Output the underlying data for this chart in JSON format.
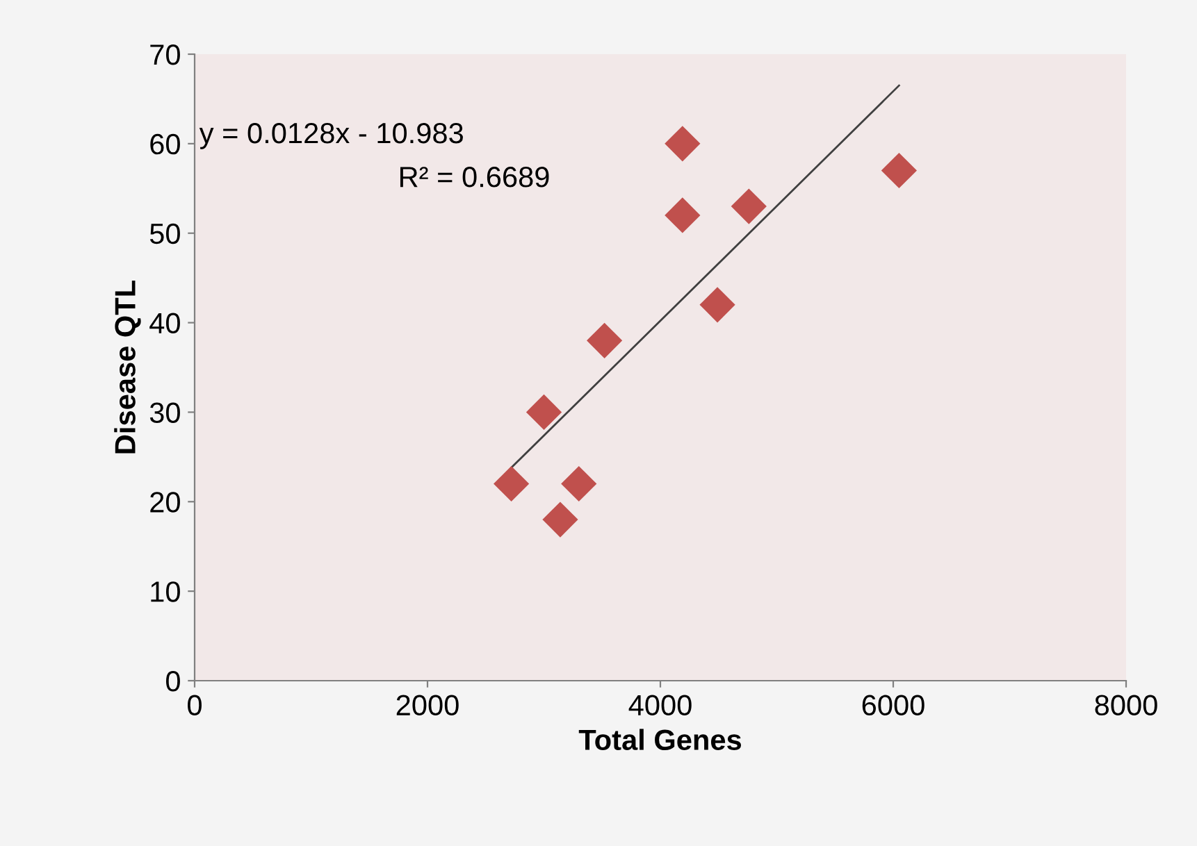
{
  "chart_data": {
    "type": "scatter",
    "xlabel": "Total Genes",
    "ylabel": "Disease QTL",
    "series": [
      {
        "color": "#c0504d",
        "marker": "diamond",
        "x": [
          2720,
          3000,
          3140,
          3300,
          3520,
          4190,
          4190,
          4490,
          4760,
          6050
        ],
        "values": [
          22,
          30,
          18,
          22,
          38,
          60,
          52,
          42,
          53,
          57
        ]
      },
      {
        "type": "line",
        "color": "#404040",
        "marker": "none",
        "line_style": "solid",
        "x": [
          2720,
          6050
        ],
        "values": [
          23.8,
          66.5
        ]
      }
    ],
    "annotations": [
      "y = 0.0128x - 10.983",
      "R² = 0.6689"
    ],
    "xlim": [
      0,
      8000
    ],
    "xticks": [
      0,
      2000,
      4000,
      6000,
      8000
    ],
    "ylim": [
      0,
      70
    ],
    "yticks": [
      0,
      10,
      20,
      30,
      40,
      50,
      60,
      70
    ],
    "grid": false,
    "legend": false
  }
}
